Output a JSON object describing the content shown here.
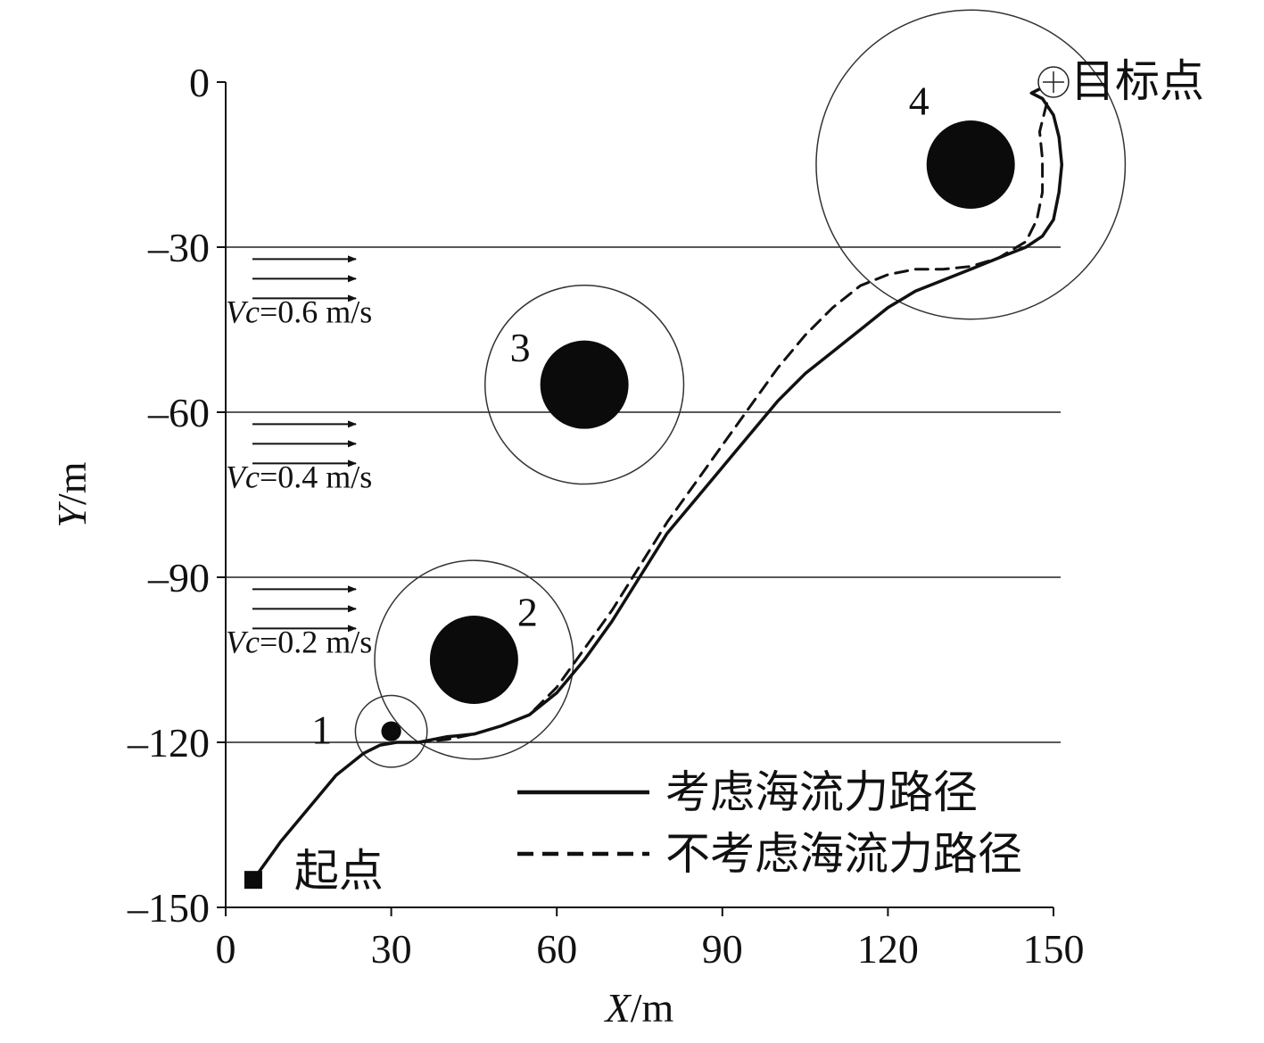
{
  "chart_data": {
    "type": "line",
    "xlabel_var": "X",
    "xlabel_unit": "/m",
    "ylabel_var": "Y",
    "ylabel_unit": "/m",
    "xlim": [
      0,
      150
    ],
    "ylim": [
      -150,
      0
    ],
    "x_ticks": [
      0,
      30,
      60,
      90,
      120,
      150
    ],
    "y_ticks": [
      0,
      -30,
      -60,
      -90,
      -120,
      -150
    ],
    "x_tick_labels": [
      "0",
      "30",
      "60",
      "90",
      "120",
      "150"
    ],
    "y_tick_labels": [
      "0",
      "-30",
      "-60",
      "-90",
      "-120",
      "-150"
    ],
    "grid_y": [
      -30,
      -60,
      -90,
      -120
    ],
    "current_zones": [
      {
        "label_var": "Vc",
        "label_value": "=0.6 m/s",
        "y": -38
      },
      {
        "label_var": "Vc",
        "label_value": "=0.4 m/s",
        "y": -68
      },
      {
        "label_var": "Vc",
        "label_value": "=0.2 m/s",
        "y": -98
      }
    ],
    "obstacles": [
      {
        "id": "1",
        "cx": 30,
        "cy": -118,
        "r_body": 1.8,
        "r_safe": 6.5
      },
      {
        "id": "2",
        "cx": 45,
        "cy": -105,
        "r_body": 8,
        "r_safe": 18
      },
      {
        "id": "3",
        "cx": 65,
        "cy": -55,
        "r_body": 8,
        "r_safe": 18
      },
      {
        "id": "4",
        "cx": 135,
        "cy": -15,
        "r_body": 8,
        "r_safe": 28
      }
    ],
    "start": {
      "label": "起点",
      "x": 5,
      "y": -145
    },
    "goal": {
      "label": "目标点",
      "x": 150,
      "y": 0
    },
    "series": [
      {
        "name": "考虑海流力路径",
        "style": "solid",
        "x": [
          5,
          10,
          15,
          20,
          25,
          28,
          31,
          35,
          40,
          45,
          50,
          55,
          60,
          65,
          70,
          75,
          80,
          85,
          90,
          95,
          100,
          105,
          110,
          115,
          120,
          125,
          130,
          135,
          140,
          145,
          148,
          150,
          151,
          151.5,
          151,
          150,
          148,
          146,
          150
        ],
        "y": [
          -145,
          -138,
          -132,
          -126,
          -122,
          -120.5,
          -120,
          -120,
          -119,
          -118.5,
          -117,
          -115,
          -111,
          -105,
          -98,
          -90,
          -82,
          -76,
          -70,
          -64,
          -58,
          -53,
          -49,
          -45,
          -41,
          -38,
          -36,
          -34,
          -32,
          -30,
          -28,
          -25,
          -20,
          -15,
          -10,
          -6,
          -3,
          -2,
          0
        ]
      },
      {
        "name": "不考虑海流力路径",
        "style": "dashed",
        "x": [
          31,
          35,
          40,
          45,
          50,
          55,
          60,
          65,
          70,
          75,
          80,
          85,
          90,
          95,
          100,
          105,
          110,
          115,
          120,
          125,
          130,
          135,
          140,
          145,
          147,
          148,
          148,
          147.5,
          148.5,
          149,
          150
        ],
        "y": [
          -120,
          -120,
          -119.5,
          -118.5,
          -117,
          -115,
          -110,
          -103,
          -96,
          -88,
          -80,
          -73,
          -66,
          -59,
          -52,
          -46,
          -41,
          -37,
          -35,
          -34,
          -34,
          -33.5,
          -32,
          -29,
          -25,
          -20,
          -14,
          -9,
          -5,
          -3,
          0
        ]
      }
    ],
    "legend": "bottom-right"
  }
}
